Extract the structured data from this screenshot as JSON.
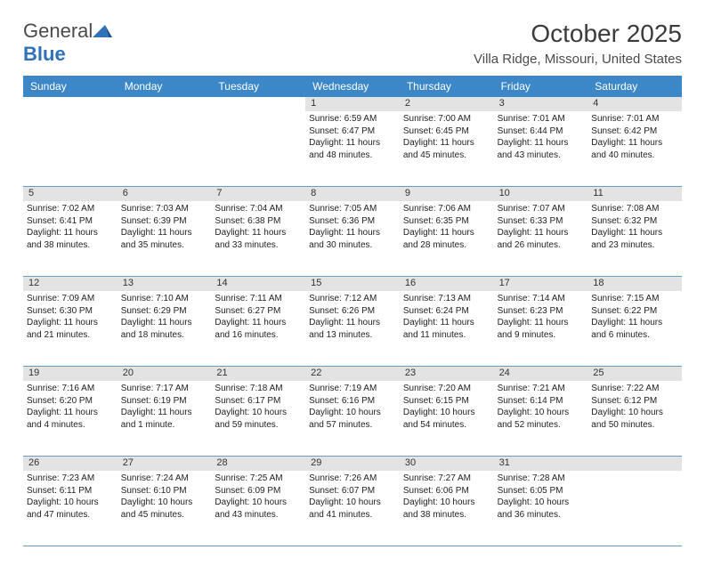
{
  "logo": {
    "text_general": "General",
    "text_blue": "Blue"
  },
  "title": {
    "month": "October 2025",
    "location": "Villa Ridge, Missouri, United States"
  },
  "colors": {
    "header_bg": "#3b87c8",
    "header_text": "#ffffff",
    "num_row_bg": "#e3e3e3",
    "week_border": "#6a9bc2",
    "logo_blue": "#2f72b8"
  },
  "daysOfWeek": [
    "Sunday",
    "Monday",
    "Tuesday",
    "Wednesday",
    "Thursday",
    "Friday",
    "Saturday"
  ],
  "weeks": [
    [
      {
        "n": "",
        "sunrise": "",
        "sunset": "",
        "day1": "",
        "day2": ""
      },
      {
        "n": "",
        "sunrise": "",
        "sunset": "",
        "day1": "",
        "day2": ""
      },
      {
        "n": "",
        "sunrise": "",
        "sunset": "",
        "day1": "",
        "day2": ""
      },
      {
        "n": "1",
        "sunrise": "Sunrise: 6:59 AM",
        "sunset": "Sunset: 6:47 PM",
        "day1": "Daylight: 11 hours",
        "day2": "and 48 minutes."
      },
      {
        "n": "2",
        "sunrise": "Sunrise: 7:00 AM",
        "sunset": "Sunset: 6:45 PM",
        "day1": "Daylight: 11 hours",
        "day2": "and 45 minutes."
      },
      {
        "n": "3",
        "sunrise": "Sunrise: 7:01 AM",
        "sunset": "Sunset: 6:44 PM",
        "day1": "Daylight: 11 hours",
        "day2": "and 43 minutes."
      },
      {
        "n": "4",
        "sunrise": "Sunrise: 7:01 AM",
        "sunset": "Sunset: 6:42 PM",
        "day1": "Daylight: 11 hours",
        "day2": "and 40 minutes."
      }
    ],
    [
      {
        "n": "5",
        "sunrise": "Sunrise: 7:02 AM",
        "sunset": "Sunset: 6:41 PM",
        "day1": "Daylight: 11 hours",
        "day2": "and 38 minutes."
      },
      {
        "n": "6",
        "sunrise": "Sunrise: 7:03 AM",
        "sunset": "Sunset: 6:39 PM",
        "day1": "Daylight: 11 hours",
        "day2": "and 35 minutes."
      },
      {
        "n": "7",
        "sunrise": "Sunrise: 7:04 AM",
        "sunset": "Sunset: 6:38 PM",
        "day1": "Daylight: 11 hours",
        "day2": "and 33 minutes."
      },
      {
        "n": "8",
        "sunrise": "Sunrise: 7:05 AM",
        "sunset": "Sunset: 6:36 PM",
        "day1": "Daylight: 11 hours",
        "day2": "and 30 minutes."
      },
      {
        "n": "9",
        "sunrise": "Sunrise: 7:06 AM",
        "sunset": "Sunset: 6:35 PM",
        "day1": "Daylight: 11 hours",
        "day2": "and 28 minutes."
      },
      {
        "n": "10",
        "sunrise": "Sunrise: 7:07 AM",
        "sunset": "Sunset: 6:33 PM",
        "day1": "Daylight: 11 hours",
        "day2": "and 26 minutes."
      },
      {
        "n": "11",
        "sunrise": "Sunrise: 7:08 AM",
        "sunset": "Sunset: 6:32 PM",
        "day1": "Daylight: 11 hours",
        "day2": "and 23 minutes."
      }
    ],
    [
      {
        "n": "12",
        "sunrise": "Sunrise: 7:09 AM",
        "sunset": "Sunset: 6:30 PM",
        "day1": "Daylight: 11 hours",
        "day2": "and 21 minutes."
      },
      {
        "n": "13",
        "sunrise": "Sunrise: 7:10 AM",
        "sunset": "Sunset: 6:29 PM",
        "day1": "Daylight: 11 hours",
        "day2": "and 18 minutes."
      },
      {
        "n": "14",
        "sunrise": "Sunrise: 7:11 AM",
        "sunset": "Sunset: 6:27 PM",
        "day1": "Daylight: 11 hours",
        "day2": "and 16 minutes."
      },
      {
        "n": "15",
        "sunrise": "Sunrise: 7:12 AM",
        "sunset": "Sunset: 6:26 PM",
        "day1": "Daylight: 11 hours",
        "day2": "and 13 minutes."
      },
      {
        "n": "16",
        "sunrise": "Sunrise: 7:13 AM",
        "sunset": "Sunset: 6:24 PM",
        "day1": "Daylight: 11 hours",
        "day2": "and 11 minutes."
      },
      {
        "n": "17",
        "sunrise": "Sunrise: 7:14 AM",
        "sunset": "Sunset: 6:23 PM",
        "day1": "Daylight: 11 hours",
        "day2": "and 9 minutes."
      },
      {
        "n": "18",
        "sunrise": "Sunrise: 7:15 AM",
        "sunset": "Sunset: 6:22 PM",
        "day1": "Daylight: 11 hours",
        "day2": "and 6 minutes."
      }
    ],
    [
      {
        "n": "19",
        "sunrise": "Sunrise: 7:16 AM",
        "sunset": "Sunset: 6:20 PM",
        "day1": "Daylight: 11 hours",
        "day2": "and 4 minutes."
      },
      {
        "n": "20",
        "sunrise": "Sunrise: 7:17 AM",
        "sunset": "Sunset: 6:19 PM",
        "day1": "Daylight: 11 hours",
        "day2": "and 1 minute."
      },
      {
        "n": "21",
        "sunrise": "Sunrise: 7:18 AM",
        "sunset": "Sunset: 6:17 PM",
        "day1": "Daylight: 10 hours",
        "day2": "and 59 minutes."
      },
      {
        "n": "22",
        "sunrise": "Sunrise: 7:19 AM",
        "sunset": "Sunset: 6:16 PM",
        "day1": "Daylight: 10 hours",
        "day2": "and 57 minutes."
      },
      {
        "n": "23",
        "sunrise": "Sunrise: 7:20 AM",
        "sunset": "Sunset: 6:15 PM",
        "day1": "Daylight: 10 hours",
        "day2": "and 54 minutes."
      },
      {
        "n": "24",
        "sunrise": "Sunrise: 7:21 AM",
        "sunset": "Sunset: 6:14 PM",
        "day1": "Daylight: 10 hours",
        "day2": "and 52 minutes."
      },
      {
        "n": "25",
        "sunrise": "Sunrise: 7:22 AM",
        "sunset": "Sunset: 6:12 PM",
        "day1": "Daylight: 10 hours",
        "day2": "and 50 minutes."
      }
    ],
    [
      {
        "n": "26",
        "sunrise": "Sunrise: 7:23 AM",
        "sunset": "Sunset: 6:11 PM",
        "day1": "Daylight: 10 hours",
        "day2": "and 47 minutes."
      },
      {
        "n": "27",
        "sunrise": "Sunrise: 7:24 AM",
        "sunset": "Sunset: 6:10 PM",
        "day1": "Daylight: 10 hours",
        "day2": "and 45 minutes."
      },
      {
        "n": "28",
        "sunrise": "Sunrise: 7:25 AM",
        "sunset": "Sunset: 6:09 PM",
        "day1": "Daylight: 10 hours",
        "day2": "and 43 minutes."
      },
      {
        "n": "29",
        "sunrise": "Sunrise: 7:26 AM",
        "sunset": "Sunset: 6:07 PM",
        "day1": "Daylight: 10 hours",
        "day2": "and 41 minutes."
      },
      {
        "n": "30",
        "sunrise": "Sunrise: 7:27 AM",
        "sunset": "Sunset: 6:06 PM",
        "day1": "Daylight: 10 hours",
        "day2": "and 38 minutes."
      },
      {
        "n": "31",
        "sunrise": "Sunrise: 7:28 AM",
        "sunset": "Sunset: 6:05 PM",
        "day1": "Daylight: 10 hours",
        "day2": "and 36 minutes."
      },
      {
        "n": "",
        "sunrise": "",
        "sunset": "",
        "day1": "",
        "day2": ""
      }
    ]
  ]
}
